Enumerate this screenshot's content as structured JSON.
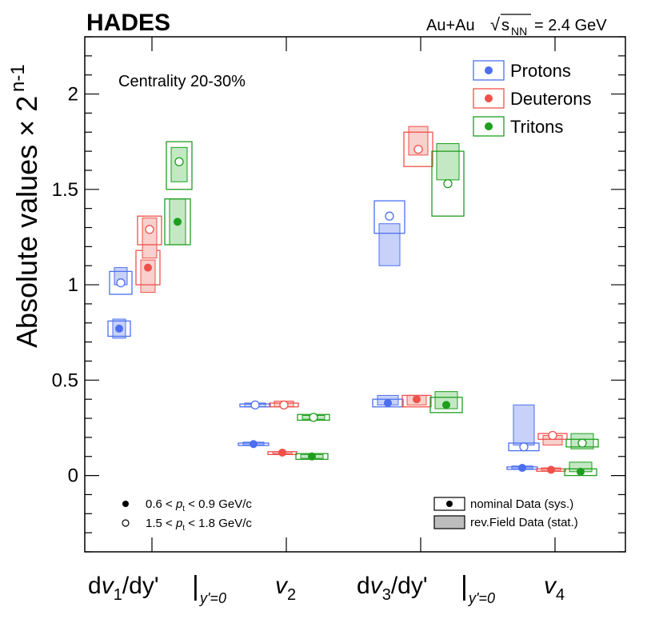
{
  "chart_data": {
    "type": "scatter",
    "experiment": "HADES",
    "system": "Au+Au",
    "sqrt_symbol": "√",
    "sqrt_s_label": "s",
    "sqrt_s_subscript": "NN",
    "energy": "= 2.4 GeV",
    "ylabel": "Absolute values × 2",
    "ylabel_exponent": "n-1",
    "ylim": [
      -0.4,
      2.3
    ],
    "yticks": [
      "0",
      "0.5",
      "1",
      "1.5",
      "2"
    ],
    "annotation": "Centrality 20-30%",
    "categories": [
      {
        "name": "dv",
        "sub": "1",
        "mid": "/dy'",
        "bar": "|",
        "eval": "y'=0"
      },
      {
        "name": "v",
        "sub": "2"
      },
      {
        "name": "dv",
        "sub": "3",
        "mid": "/dy'",
        "bar": "|",
        "eval": "y'=0"
      },
      {
        "name": "v",
        "sub": "4"
      }
    ],
    "series": [
      {
        "name": "Protons",
        "color": "#4c6ff0",
        "fill": "#c8d2f8",
        "low_pt": [
          {
            "value": 0.77,
            "sys": [
              0.73,
              0.81
            ],
            "stat": [
              0.72,
              0.82
            ]
          },
          {
            "value": 0.165,
            "sys": [
              0.16,
              0.17
            ],
            "stat": [
              0.16,
              0.175
            ]
          },
          {
            "value": 0.38,
            "sys": [
              0.36,
              0.4
            ],
            "stat": [
              0.37,
              0.42
            ]
          },
          {
            "value": 0.04,
            "sys": [
              0.035,
              0.045
            ],
            "stat": [
              0.035,
              0.05
            ]
          }
        ],
        "high_pt": [
          {
            "value": 1.01,
            "sys": [
              0.95,
              1.07
            ],
            "stat": [
              1.0,
              1.09
            ]
          },
          {
            "value": 0.37,
            "sys": [
              0.36,
              0.375
            ],
            "stat": [
              0.36,
              0.38
            ]
          },
          {
            "value": 1.36,
            "sys": [
              1.27,
              1.44
            ],
            "stat": [
              1.1,
              1.32
            ]
          },
          {
            "value": 0.15,
            "sys": [
              0.13,
              0.17
            ],
            "stat": [
              0.16,
              0.37
            ]
          }
        ]
      },
      {
        "name": "Deuterons",
        "color": "#f0504a",
        "fill": "#f8d0cc",
        "low_pt": [
          {
            "value": 1.09,
            "sys": [
              1.0,
              1.18
            ],
            "stat": [
              0.96,
              1.13
            ]
          },
          {
            "value": 0.12,
            "sys": [
              0.11,
              0.125
            ],
            "stat": [
              0.115,
              0.125
            ]
          },
          {
            "value": 0.4,
            "sys": [
              0.36,
              0.42
            ],
            "stat": [
              0.37,
              0.42
            ]
          },
          {
            "value": 0.03,
            "sys": [
              0.025,
              0.035
            ],
            "stat": [
              0.025,
              0.04
            ]
          }
        ],
        "high_pt": [
          {
            "value": 1.29,
            "sys": [
              1.21,
              1.36
            ],
            "stat": [
              1.14,
              1.35
            ]
          },
          {
            "value": 0.37,
            "sys": [
              0.36,
              0.38
            ],
            "stat": [
              0.36,
              0.39
            ]
          },
          {
            "value": 1.71,
            "sys": [
              1.62,
              1.8
            ],
            "stat": [
              1.68,
              1.83
            ]
          },
          {
            "value": 0.21,
            "sys": [
              0.19,
              0.22
            ],
            "stat": [
              0.16,
              0.21
            ]
          }
        ]
      },
      {
        "name": "Tritons",
        "color": "#1e9e1e",
        "fill": "#c4e8c4",
        "low_pt": [
          {
            "value": 1.33,
            "sys": [
              1.21,
              1.45
            ],
            "stat": [
              1.21,
              1.45
            ]
          },
          {
            "value": 0.1,
            "sys": [
              0.085,
              0.115
            ],
            "stat": [
              0.09,
              0.11
            ]
          },
          {
            "value": 0.37,
            "sys": [
              0.33,
              0.41
            ],
            "stat": [
              0.35,
              0.44
            ]
          },
          {
            "value": 0.02,
            "sys": [
              0.0,
              0.035
            ],
            "stat": [
              0.02,
              0.07
            ]
          }
        ],
        "high_pt": [
          {
            "value": 1.645,
            "sys": [
              1.5,
              1.75
            ],
            "stat": [
              1.54,
              1.72
            ]
          },
          {
            "value": 0.305,
            "sys": [
              0.29,
              0.32
            ],
            "stat": [
              0.295,
              0.315
            ]
          },
          {
            "value": 1.53,
            "sys": [
              1.36,
              1.7
            ],
            "stat": [
              1.55,
              1.74
            ]
          },
          {
            "value": 0.17,
            "sys": [
              0.15,
              0.19
            ],
            "stat": [
              0.14,
              0.22
            ]
          }
        ]
      }
    ],
    "pt_legend": [
      {
        "marker": "filled",
        "prefix": "0.6 < ",
        "var": "p",
        "sub": "t",
        "suffix": " < 0.9 GeV/c"
      },
      {
        "marker": "open",
        "prefix": "1.5 < ",
        "var": "p",
        "sub": "t",
        "suffix": " < 1.8 GeV/c"
      }
    ],
    "box_legend": [
      {
        "style": "open",
        "label": "nominal Data (sys.)"
      },
      {
        "style": "filled",
        "label": "rev.Field Data (stat.)"
      }
    ]
  }
}
